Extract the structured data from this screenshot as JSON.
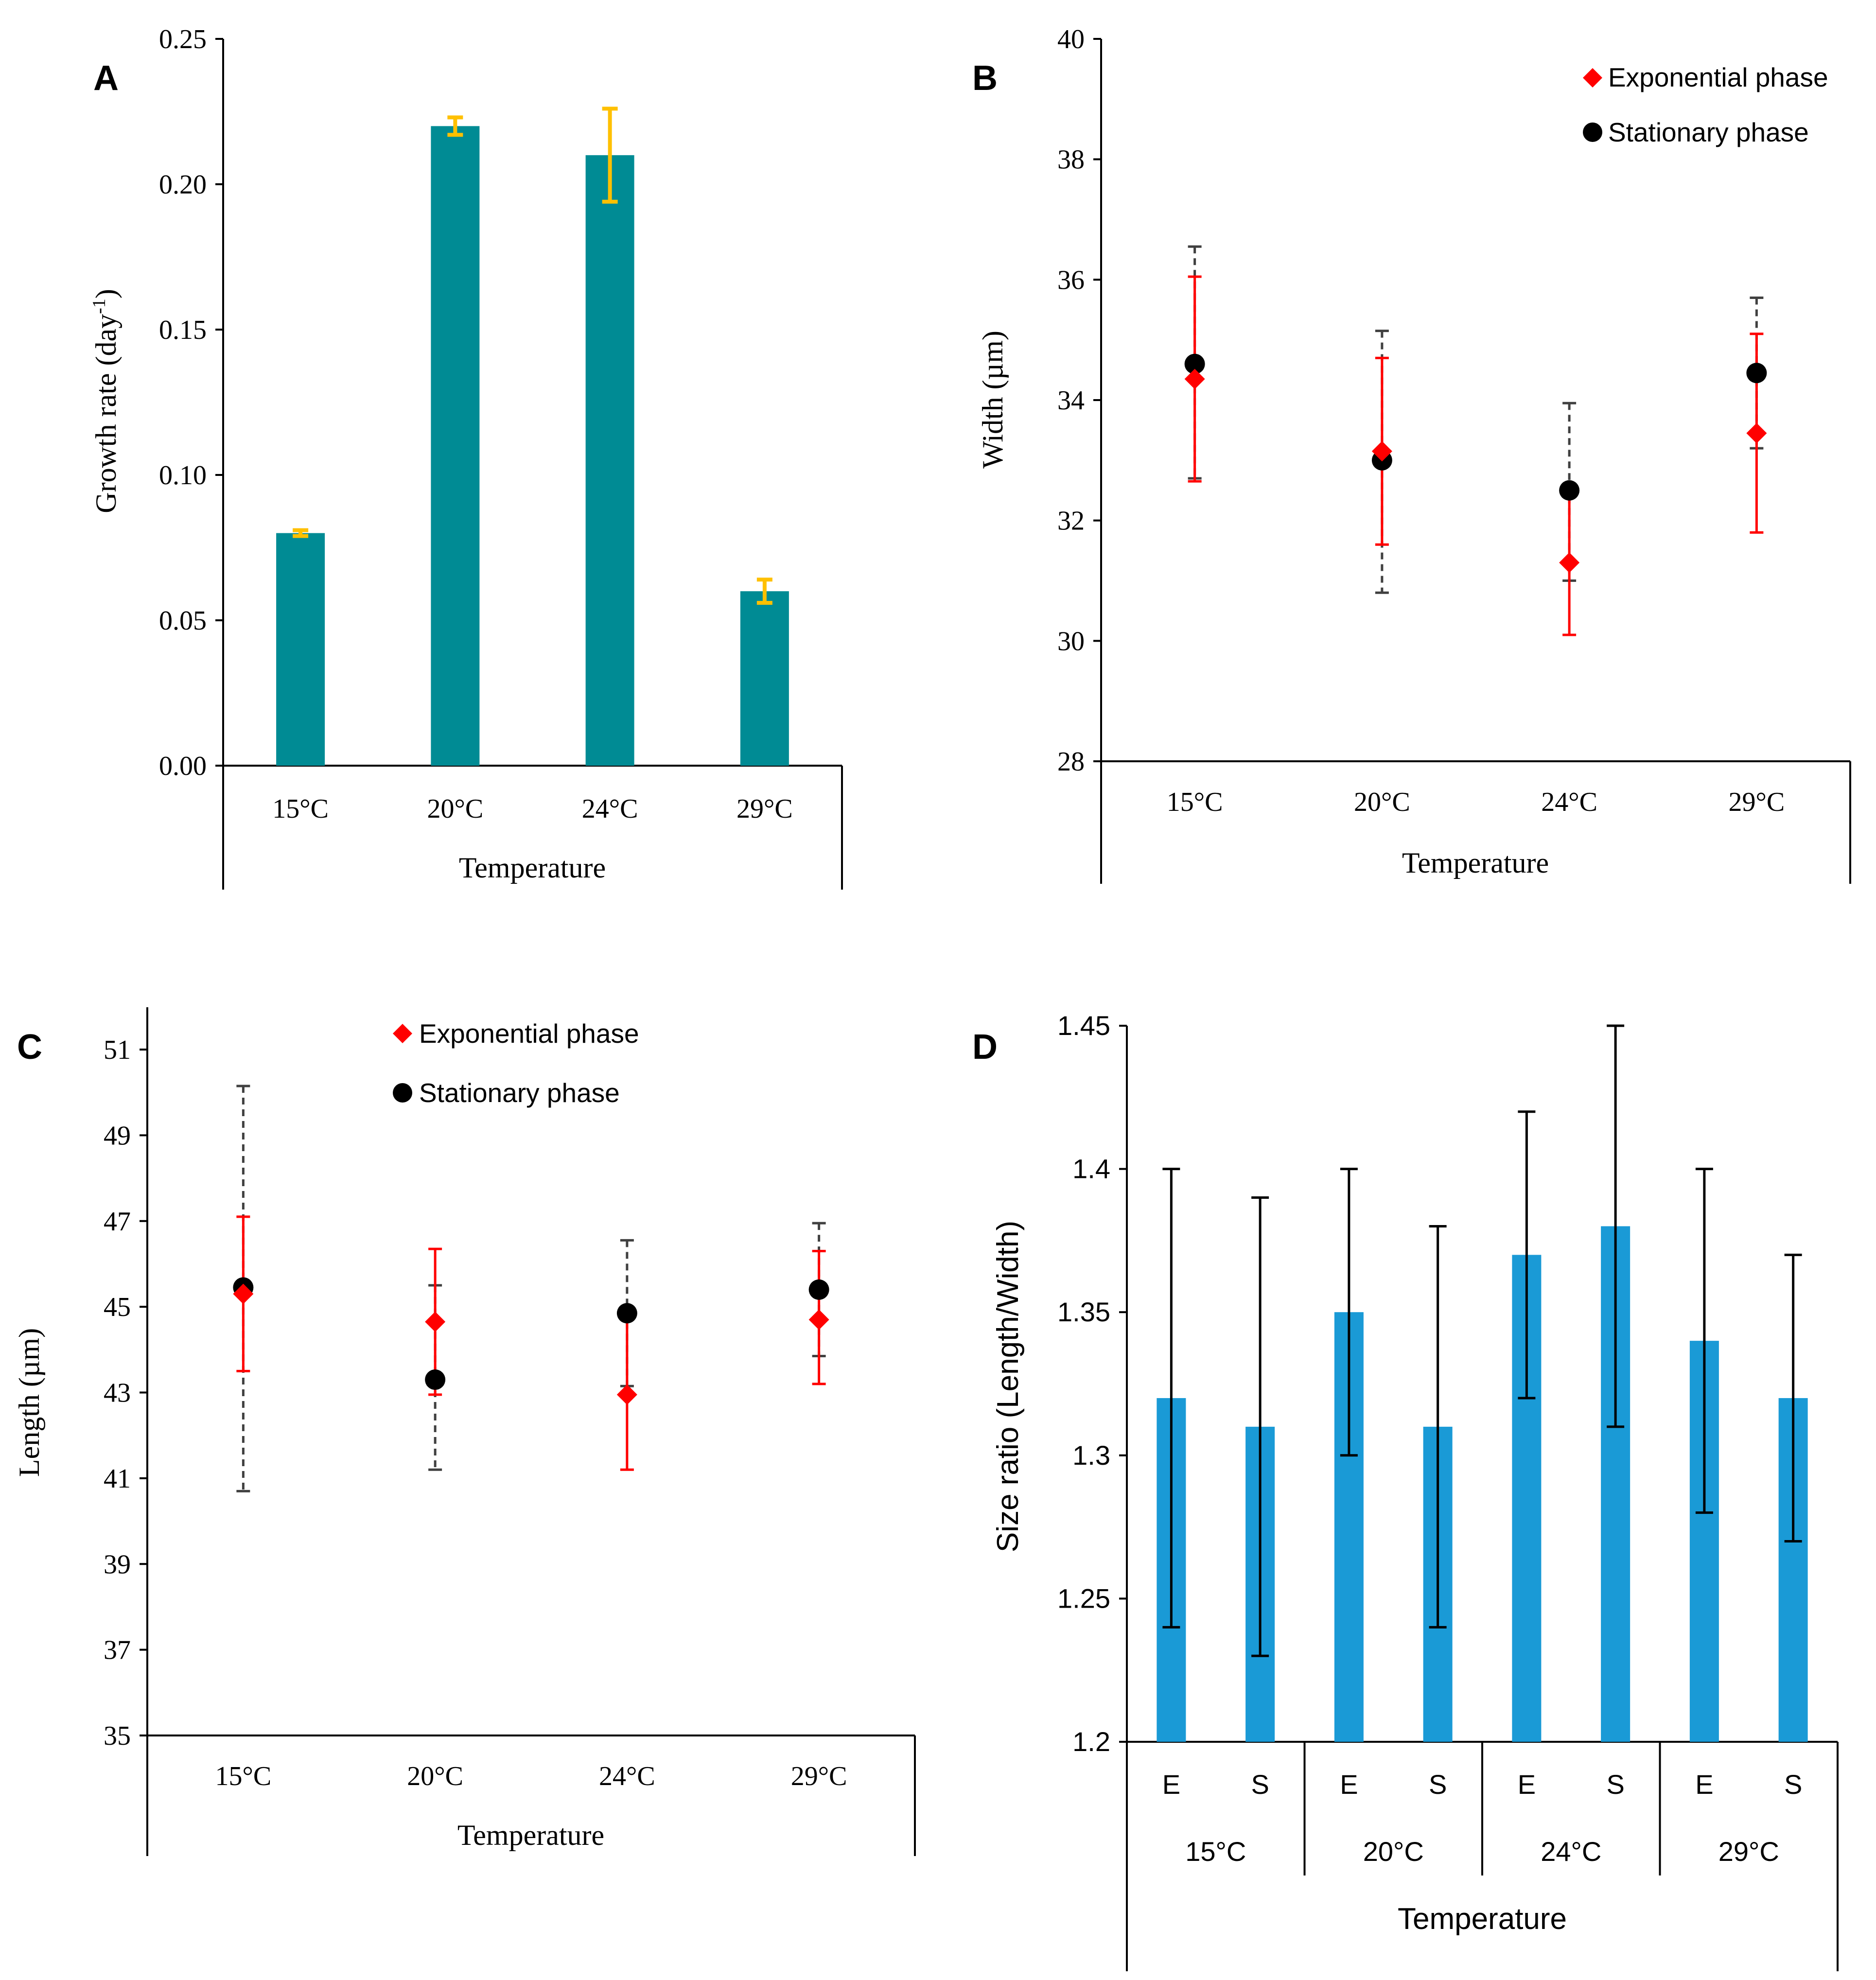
{
  "chart_data": [
    {
      "panel": "A",
      "type": "bar",
      "xlabel": "Temperature",
      "ylabel": "Growth rate (day",
      "ylabel_superscript": "-1",
      "ylabel_close": ")",
      "categories": [
        "15°C",
        "20°C",
        "24°C",
        "29°C"
      ],
      "values": [
        0.08,
        0.22,
        0.21,
        0.06
      ],
      "errors": [
        0.001,
        0.003,
        0.016,
        0.004
      ],
      "ylim": [
        0,
        0.25
      ],
      "yticks": [
        "0.00",
        "0.05",
        "0.10",
        "0.15",
        "0.20",
        "0.25"
      ],
      "bar_color": "#008B94",
      "error_color": "#FFC000"
    },
    {
      "panel": "B",
      "type": "scatter",
      "xlabel": "Temperature",
      "ylabel": "Width (µm)",
      "categories": [
        "15°C",
        "20°C",
        "24°C",
        "29°C"
      ],
      "ylim": [
        28,
        40
      ],
      "yticks": [
        "28",
        "30",
        "32",
        "34",
        "36",
        "38",
        "40"
      ],
      "series": [
        {
          "name": "Exponential phase",
          "marker": "diamond",
          "color": "#FF0000",
          "values": [
            34.35,
            33.15,
            31.3,
            33.45
          ],
          "err_low": [
            32.65,
            31.6,
            30.1,
            31.8
          ],
          "err_high": [
            36.05,
            34.7,
            32.4,
            35.1
          ]
        },
        {
          "name": "Stationary phase",
          "marker": "circle",
          "color": "#000000",
          "values": [
            34.6,
            33.0,
            32.5,
            34.45
          ],
          "err_low": [
            32.7,
            30.8,
            31.0,
            33.2
          ],
          "err_high": [
            36.55,
            35.15,
            33.95,
            35.7
          ]
        }
      ],
      "legend": [
        "Exponential phase",
        "Stationary phase"
      ]
    },
    {
      "panel": "C",
      "type": "scatter",
      "xlabel": "Temperature",
      "ylabel": "Length  (µm)",
      "categories": [
        "15°C",
        "20°C",
        "24°C",
        "29°C"
      ],
      "ylim": [
        35,
        51
      ],
      "yticks": [
        "35",
        "37",
        "39",
        "41",
        "43",
        "45",
        "47",
        "49",
        "51"
      ],
      "series": [
        {
          "name": "Exponential phase",
          "marker": "diamond",
          "color": "#FF0000",
          "values": [
            45.3,
            44.65,
            42.95,
            44.7
          ],
          "err_low": [
            43.5,
            42.95,
            41.2,
            43.2
          ],
          "err_high": [
            47.1,
            46.35,
            44.7,
            46.3
          ]
        },
        {
          "name": "Stationary phase",
          "marker": "circle",
          "color": "#000000",
          "values": [
            45.45,
            43.3,
            44.85,
            45.4
          ],
          "err_low": [
            40.7,
            41.2,
            43.15,
            43.85
          ],
          "err_high": [
            50.15,
            45.5,
            46.55,
            46.95
          ]
        }
      ],
      "legend": [
        "Exponential phase",
        "Stationary phase"
      ]
    },
    {
      "panel": "D",
      "type": "bar",
      "xlabel": "Temperature",
      "ylabel": "Size ratio (Length/Width)",
      "groups": [
        "15°C",
        "20°C",
        "24°C",
        "29°C"
      ],
      "subcategories": [
        "E",
        "S"
      ],
      "values": [
        1.32,
        1.31,
        1.35,
        1.31,
        1.37,
        1.38,
        1.34,
        1.32
      ],
      "err_low": [
        1.24,
        1.23,
        1.3,
        1.24,
        1.32,
        1.31,
        1.28,
        1.27
      ],
      "err_high": [
        1.4,
        1.39,
        1.4,
        1.38,
        1.42,
        1.45,
        1.4,
        1.37
      ],
      "ylim": [
        1.2,
        1.45
      ],
      "yticks": [
        "1.2",
        "1.25",
        "1.3",
        "1.35",
        "1.4",
        "1.45"
      ],
      "bar_color": "#1A9AD6",
      "error_color": "#000000"
    }
  ]
}
